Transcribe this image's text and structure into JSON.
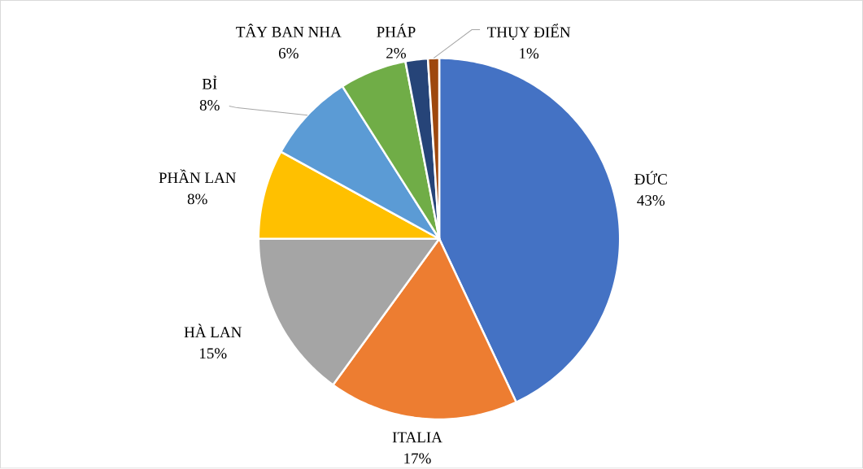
{
  "chart_data": {
    "type": "pie",
    "categories": [
      "ĐỨC",
      "ITALIA",
      "HÀ LAN",
      "PHẦN LAN",
      "BỈ",
      "TÂY BAN NHA",
      "PHÁP",
      "THỤY ĐIỂN"
    ],
    "values": [
      43,
      17,
      15,
      8,
      8,
      6,
      2,
      1
    ],
    "value_labels": [
      "43%",
      "17%",
      "15%",
      "8%",
      "8%",
      "6%",
      "2%",
      "1%"
    ],
    "colors": [
      "#4472c4",
      "#ed7d31",
      "#a5a5a5",
      "#ffc000",
      "#5b9bd5",
      "#70ad47",
      "#264478",
      "#9e480e"
    ]
  }
}
